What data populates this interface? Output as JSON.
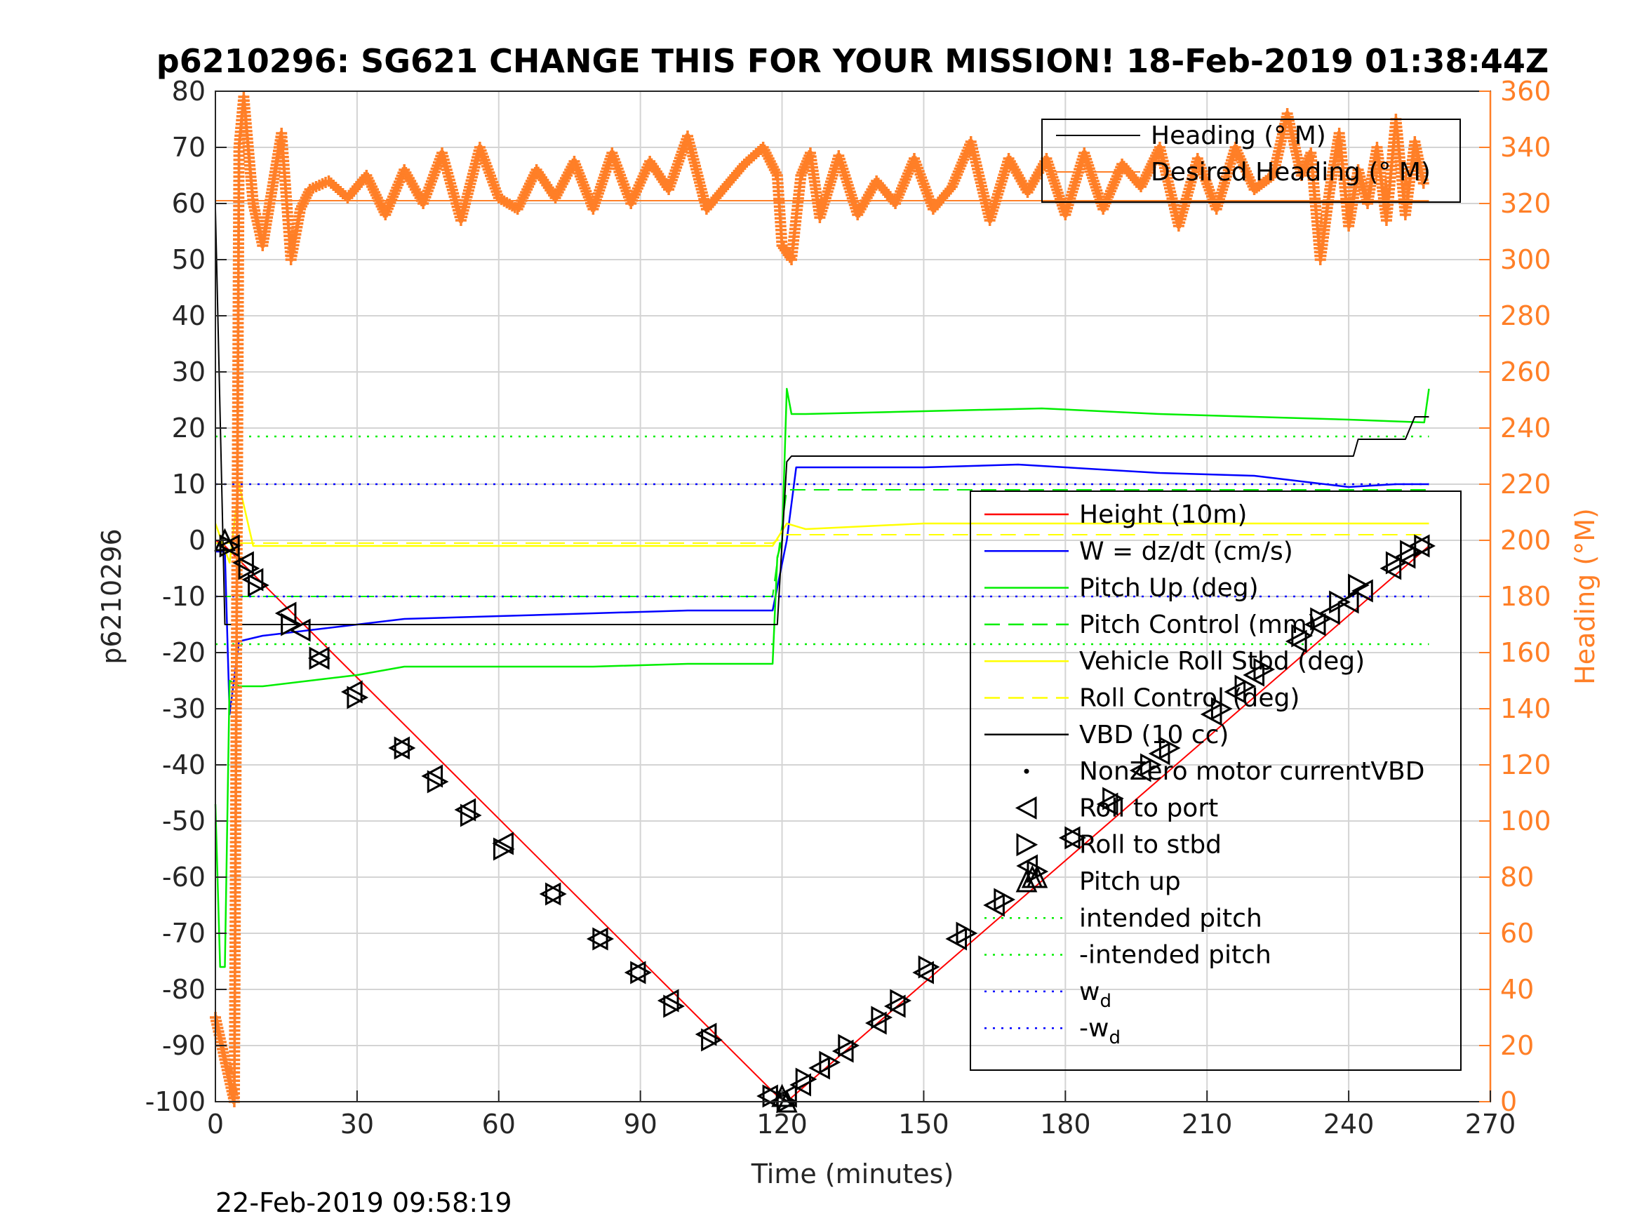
{
  "chart_data": {
    "type": "line",
    "title": "p6210296: SG621 CHANGE THIS FOR YOUR MISSION! 18-Feb-2019 01:38:44Z",
    "xlabel": "Time (minutes)",
    "ylabel_left": "p6210296",
    "ylabel_right": "Heading (°M)",
    "footer": "22-Feb-2019 09:58:19",
    "xlim": [
      0,
      270
    ],
    "ylim_left": [
      -100,
      80
    ],
    "ylim_right": [
      0,
      360
    ],
    "x_ticks": [
      "0",
      "30",
      "60",
      "90",
      "120",
      "150",
      "180",
      "210",
      "240",
      "270"
    ],
    "y_ticks_left": [
      "80",
      "70",
      "60",
      "50",
      "40",
      "30",
      "20",
      "10",
      "0",
      "-10",
      "-20",
      "-30",
      "-40",
      "-50",
      "-60",
      "-70",
      "-80",
      "-90",
      "-100"
    ],
    "y_ticks_right": [
      "360",
      "340",
      "320",
      "300",
      "280",
      "260",
      "240",
      "220",
      "200",
      "180",
      "160",
      "140",
      "120",
      "100",
      "80",
      "60",
      "40",
      "20",
      "0"
    ],
    "grid": true,
    "colors": {
      "height": "#ff0000",
      "w": "#0000ff",
      "pitch": "#00ee00",
      "roll": "#ffff00",
      "vbd": "#000000",
      "heading": "#ff7f27",
      "right_axis": "#ff7f27"
    },
    "legend_heading": {
      "placement": "top-right",
      "entries": [
        "Heading (° M)",
        "Desired Heading (° M)"
      ]
    },
    "legend_main": {
      "placement": "right",
      "entries": [
        "Height (10m)",
        "W = dz/dt (cm/s)",
        "Pitch Up (deg)",
        "Pitch Control (mm)",
        "Vehicle Roll Stbd (deg)",
        "Roll Control (deg)",
        "VBD (10 cc)",
        "NonZero motor currentVBD",
        "Roll to port",
        "Roll to stbd",
        "Pitch up",
        "intended pitch",
        "-intended pitch",
        "w",
        "-w"
      ],
      "subscript": "d"
    },
    "series": [
      {
        "name": "Height (10m)",
        "axis": "left",
        "style": "line",
        "x": [
          0,
          2,
          119,
          121,
          257
        ],
        "y": [
          0,
          -1,
          -99,
          -100,
          -1
        ]
      },
      {
        "name": "W = dz/dt (cm/s)",
        "axis": "left",
        "style": "line",
        "x": [
          0,
          2,
          3,
          5,
          10,
          20,
          30,
          40,
          60,
          80,
          100,
          118,
          121,
          123,
          130,
          150,
          170,
          180,
          200,
          220,
          240,
          250,
          257
        ],
        "y": [
          -2,
          -2,
          -31,
          -18,
          -17,
          -16,
          -15,
          -14,
          -13.5,
          -13,
          -12.5,
          -12.5,
          0,
          13,
          13,
          13,
          13.5,
          13,
          12,
          11.5,
          9.5,
          10,
          10
        ]
      },
      {
        "name": "Pitch Up (deg)",
        "axis": "left",
        "style": "line",
        "x": [
          0,
          1,
          2,
          3,
          5,
          10,
          20,
          30,
          40,
          60,
          80,
          100,
          118,
          119,
          120,
          121,
          122,
          125,
          150,
          175,
          200,
          220,
          240,
          256,
          257
        ],
        "y": [
          -47,
          -76,
          -76,
          -25,
          -26,
          -26,
          -25,
          -24,
          -22.5,
          -22.5,
          -22.5,
          -22,
          -22,
          -3,
          0,
          27,
          22.5,
          22.5,
          23,
          23.5,
          22.5,
          22,
          21.5,
          21,
          27
        ]
      },
      {
        "name": "Pitch Control (mm)",
        "axis": "left",
        "style": "dashed",
        "x": [
          0,
          2,
          118,
          121,
          257
        ],
        "y": [
          -10,
          -10,
          -10,
          9,
          9
        ]
      },
      {
        "name": "Vehicle Roll Stbd (deg)",
        "axis": "left",
        "style": "line",
        "x": [
          0,
          3,
          5,
          8,
          15,
          25,
          40,
          60,
          80,
          100,
          118,
          121,
          125,
          150,
          180,
          210,
          240,
          257
        ],
        "y": [
          3,
          -4,
          10,
          -1,
          -1,
          -1,
          -1,
          -1,
          -1,
          -1,
          -1,
          3,
          2,
          3,
          3,
          3,
          3,
          3
        ]
      },
      {
        "name": "Roll Control (deg)",
        "axis": "left",
        "style": "dashed",
        "x": [
          0,
          118,
          121,
          257
        ],
        "y": [
          -0.5,
          -0.5,
          1,
          1
        ]
      },
      {
        "name": "VBD (10 cc)",
        "axis": "left",
        "style": "line",
        "x": [
          0,
          2,
          3,
          118,
          119,
          121,
          122,
          195,
          241,
          242,
          252,
          254,
          257
        ],
        "y": [
          59,
          -15,
          -15,
          -15,
          -15,
          14,
          15,
          15,
          15,
          18,
          18,
          22,
          22
        ]
      },
      {
        "name": "intended pitch",
        "axis": "left",
        "style": "dotted",
        "x": [
          0,
          257
        ],
        "y": [
          18.5,
          18.5
        ]
      },
      {
        "name": "-intended pitch",
        "axis": "left",
        "style": "dotted",
        "x": [
          0,
          257
        ],
        "y": [
          -18.5,
          -18.5
        ]
      },
      {
        "name": "w_d",
        "axis": "left",
        "style": "dotted",
        "x": [
          0,
          257
        ],
        "y": [
          10,
          10
        ]
      },
      {
        "name": "-w_d",
        "axis": "left",
        "style": "dotted",
        "x": [
          0,
          257
        ],
        "y": [
          -10,
          -10
        ]
      },
      {
        "name": "Heading (° M)",
        "axis": "right",
        "style": "plus",
        "x": [
          0,
          2,
          4,
          5,
          6,
          8,
          10,
          12,
          14,
          16,
          18,
          20,
          24,
          28,
          32,
          36,
          40,
          44,
          48,
          52,
          56,
          60,
          64,
          68,
          72,
          76,
          80,
          84,
          88,
          92,
          96,
          100,
          104,
          108,
          112,
          116,
          119,
          120,
          122,
          124,
          126,
          128,
          132,
          136,
          140,
          144,
          148,
          152,
          156,
          160,
          164,
          168,
          172,
          176,
          180,
          184,
          188,
          192,
          196,
          200,
          204,
          208,
          212,
          216,
          220,
          224,
          227,
          230,
          232,
          234,
          236,
          238,
          240,
          242,
          244,
          246,
          248,
          250,
          252,
          254,
          256
        ],
        "y": [
          30,
          15,
          0,
          340,
          358,
          320,
          305,
          325,
          345,
          300,
          318,
          325,
          328,
          322,
          330,
          316,
          332,
          320,
          338,
          314,
          340,
          322,
          318,
          332,
          322,
          335,
          318,
          338,
          320,
          335,
          325,
          344,
          318,
          326,
          334,
          340,
          330,
          305,
          300,
          330,
          338,
          315,
          337,
          316,
          328,
          320,
          336,
          318,
          326,
          342,
          314,
          336,
          324,
          336,
          316,
          338,
          318,
          334,
          326,
          340,
          312,
          336,
          318,
          340,
          325,
          330,
          352,
          330,
          338,
          300,
          325,
          345,
          312,
          332,
          320,
          340,
          314,
          350,
          316,
          342,
          326
        ]
      },
      {
        "name": "Desired Heading (° M)",
        "axis": "right",
        "style": "line",
        "x": [
          0,
          257
        ],
        "y": [
          321,
          321
        ]
      }
    ],
    "markers": {
      "roll_to_port": {
        "x": [
          3,
          6,
          8,
          15,
          18,
          22,
          29,
          39,
          46,
          53,
          61,
          71,
          81,
          89,
          96,
          104,
          117,
          121,
          124,
          128,
          133,
          140,
          144,
          150,
          157,
          165,
          172,
          181,
          189,
          196,
          200,
          211,
          216,
          220,
          229,
          233,
          236,
          240,
          243,
          249,
          252,
          255
        ],
        "y": [
          -1,
          -4,
          -7,
          -13,
          -16,
          -21,
          -27,
          -37,
          -42,
          -48,
          -54,
          -63,
          -71,
          -77,
          -82,
          -88,
          -99,
          -99,
          -97,
          -94,
          -91,
          -86,
          -83,
          -77,
          -71,
          -65,
          -58,
          -53,
          -47,
          -41,
          -38,
          -31,
          -27,
          -24,
          -18,
          -15,
          -13,
          -11,
          -9,
          -5,
          -3,
          -1
        ]
      },
      "roll_to_stbd": {
        "x": [
          3,
          7,
          9,
          16,
          22,
          30,
          40,
          47,
          54,
          61,
          72,
          82,
          90,
          97,
          105,
          118,
          121,
          125,
          130,
          134,
          141,
          145,
          151,
          159,
          167,
          174,
          182,
          190,
          198,
          202,
          213,
          218,
          222,
          230,
          234,
          238,
          242,
          250,
          253,
          256
        ],
        "y": [
          -1,
          -5,
          -8,
          -15,
          -21,
          -28,
          -37,
          -43,
          -49,
          -55,
          -63,
          -71,
          -77,
          -83,
          -89,
          -99,
          -100,
          -96,
          -93,
          -90,
          -85,
          -82,
          -76,
          -70,
          -64,
          -59,
          -53,
          -46,
          -40,
          -37,
          -30,
          -26,
          -23,
          -17,
          -14,
          -11,
          -8,
          -4,
          -2,
          -1
        ]
      },
      "pitch_up": {
        "x": [
          2,
          120,
          121,
          173,
          174
        ],
        "y": [
          0,
          -99,
          -100,
          -60,
          -60
        ]
      }
    }
  }
}
